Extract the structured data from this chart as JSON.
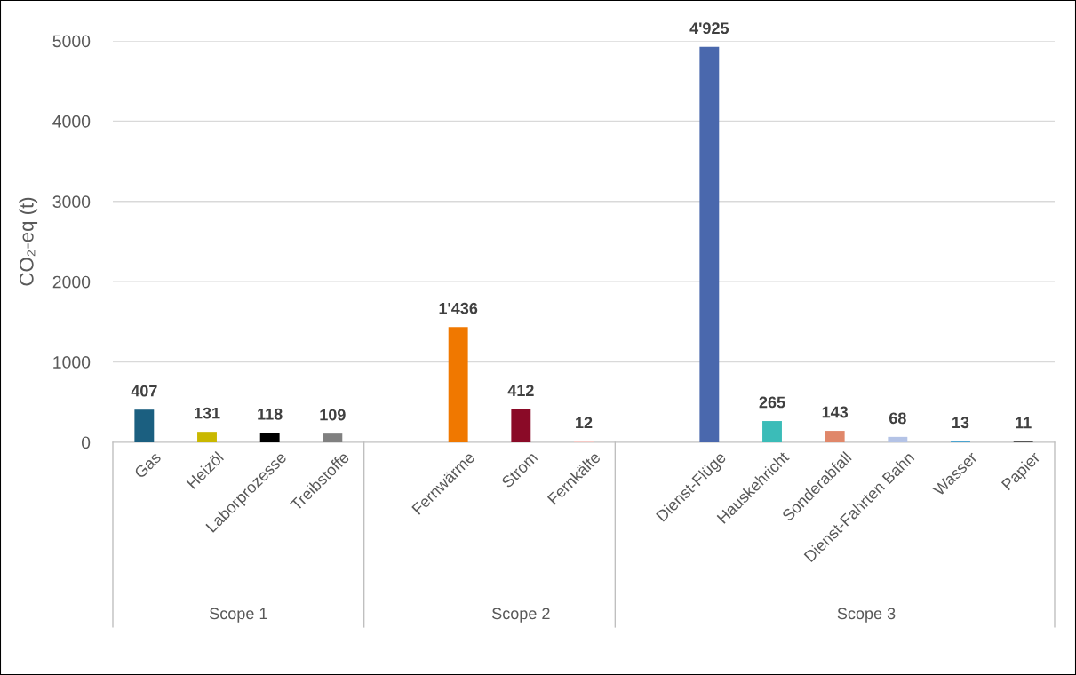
{
  "chart_data": {
    "type": "bar",
    "ylabel": "CO₂-eq (t)",
    "categories": [
      "Gas",
      "Heizöl",
      "Laborprozesse",
      "Treibstoffe",
      null,
      "Fernwärme",
      "Strom",
      "Fernkälte",
      null,
      "Dienst-Flüge",
      "Hauskehricht",
      "Sonderabfall",
      "Dienst-Fahrten Bahn",
      "Wasser",
      "Papier"
    ],
    "values": [
      407,
      131,
      118,
      109,
      null,
      1436,
      412,
      12,
      null,
      4925,
      265,
      143,
      68,
      13,
      11
    ],
    "value_labels": [
      "407",
      "131",
      "118",
      "109",
      null,
      "1'436",
      "412",
      "12",
      null,
      "4'925",
      "265",
      "143",
      "68",
      "13",
      "11"
    ],
    "colors": [
      "#1b5f80",
      "#c9b800",
      "#000000",
      "#808080",
      "#ffffff",
      "#f07800",
      "#8a0a27",
      "#f4c7c3",
      "#ffffff",
      "#4a68ad",
      "#3bbcb8",
      "#e0876a",
      "#b4c3e6",
      "#4ba3cf",
      "#555555"
    ],
    "ylim": [
      0,
      5000
    ],
    "yticks": [
      0,
      1000,
      2000,
      3000,
      4000,
      5000
    ],
    "grid": "y",
    "annotations": [
      "Scope 1",
      "Scope 2",
      "Scope 3"
    ]
  }
}
